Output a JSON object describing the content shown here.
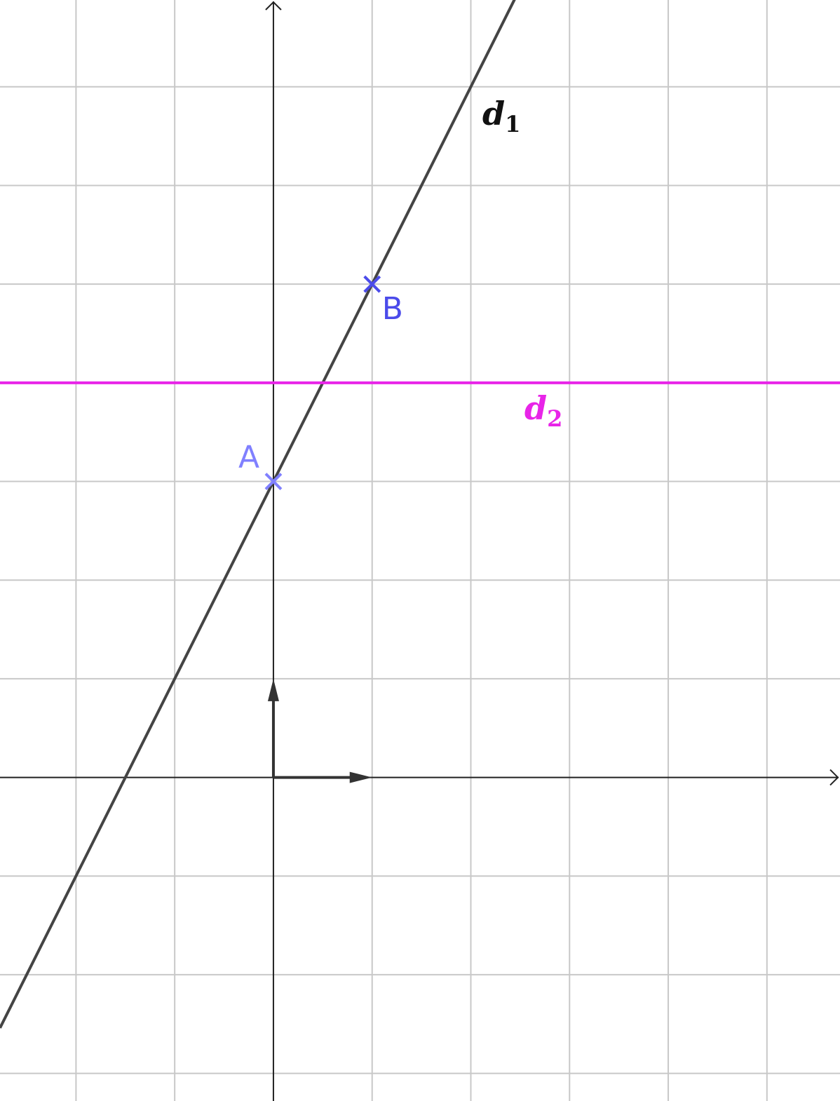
{
  "chart_data": {
    "type": "line",
    "xlim": [
      -2.77,
      5.74
    ],
    "ylim": [
      -3.28,
      7.88
    ],
    "grid": true,
    "grid_step": 1,
    "axes": {
      "x_arrow": true,
      "y_arrow": true
    },
    "unit_vectors": {
      "i": [
        1,
        0
      ],
      "j": [
        0,
        1
      ]
    },
    "lines": [
      {
        "id": "d1",
        "label": "d",
        "subscript": "1",
        "color": "#444444",
        "slope": 2,
        "intercept": 3
      },
      {
        "id": "d2",
        "label": "d",
        "subscript": "2",
        "color": "#e824e8",
        "slope": 0,
        "intercept": 4
      }
    ],
    "points": [
      {
        "label": "A",
        "x": 0,
        "y": 3,
        "color": "#8080ff"
      },
      {
        "label": "B",
        "x": 1,
        "y": 5,
        "color": "#4b4bea"
      }
    ]
  },
  "colors": {
    "grid": "#c8c8c8",
    "axis": "#222222",
    "vector": "#333333"
  }
}
